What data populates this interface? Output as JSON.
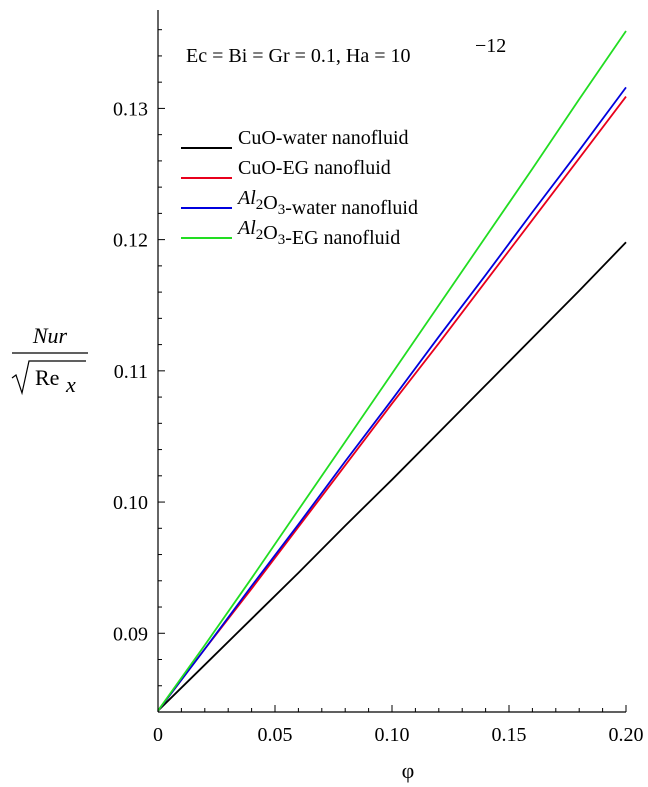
{
  "chart_data": {
    "type": "line",
    "title": "",
    "annotation": {
      "main": "Ec = Bi = Gr = 0.1, Ha = 10",
      "exponent": "−12"
    },
    "xlabel": "φ",
    "ylabel": {
      "numerator": "Nur",
      "radicand": "Re",
      "subscript": "x"
    },
    "xlim": [
      0,
      0.2
    ],
    "ylim": [
      0.084,
      0.1375
    ],
    "x_ticks": [
      {
        "value": 0,
        "label": "0"
      },
      {
        "value": 0.05,
        "label": "0.05"
      },
      {
        "value": 0.1,
        "label": "0.10"
      },
      {
        "value": 0.15,
        "label": "0.15"
      },
      {
        "value": 0.2,
        "label": "0.20"
      }
    ],
    "y_ticks": [
      {
        "value": 0.09,
        "label": "0.09"
      },
      {
        "value": 0.1,
        "label": "0.10"
      },
      {
        "value": 0.11,
        "label": "0.11"
      },
      {
        "value": 0.12,
        "label": "0.12"
      },
      {
        "value": 0.13,
        "label": "0.13"
      }
    ],
    "grid": false,
    "legend_position": "upper-left",
    "x": [
      0,
      0.02,
      0.04,
      0.06,
      0.08,
      0.1,
      0.12,
      0.14,
      0.16,
      0.18,
      0.2
    ],
    "series": [
      {
        "name": "CuO-water nanofluid",
        "legend": [
          {
            "text": "CuO-water nanofluid"
          }
        ],
        "color": "#000000",
        "values": [
          0.0841,
          0.0876,
          0.0911,
          0.0946,
          0.0982,
          0.1017,
          0.1053,
          0.1089,
          0.1125,
          0.1161,
          0.1198
        ]
      },
      {
        "name": "CuO-EG nanofluid",
        "legend": [
          {
            "text": "CuO-EG nanofluid"
          }
        ],
        "color": "#e8001c",
        "values": [
          0.0841,
          0.0888,
          0.0934,
          0.0981,
          0.1028,
          0.1075,
          0.1121,
          0.1168,
          0.1215,
          0.1262,
          0.1309
        ]
      },
      {
        "name": "Al2O3-water nanofluid",
        "legend": [
          {
            "text": "Al",
            "style": "italic"
          },
          {
            "text": "2",
            "style": "sub"
          },
          {
            "text": "O"
          },
          {
            "text": "3",
            "style": "sub"
          },
          {
            "text": "-water nanofluid"
          }
        ],
        "color": "#0000dd",
        "values": [
          0.0841,
          0.0888,
          0.0936,
          0.0983,
          0.1031,
          0.1078,
          0.1126,
          0.1173,
          0.1221,
          0.1268,
          0.1316
        ]
      },
      {
        "name": "Al2O3-EG nanofluid",
        "legend": [
          {
            "text": "Al",
            "style": "italic"
          },
          {
            "text": "2",
            "style": "sub"
          },
          {
            "text": "O"
          },
          {
            "text": "3",
            "style": "sub"
          },
          {
            "text": "-EG nanofluid"
          }
        ],
        "color": "#22dd22",
        "values": [
          0.0841,
          0.0891,
          0.0942,
          0.0994,
          0.1046,
          0.1098,
          0.115,
          0.1202,
          0.1254,
          0.1307,
          0.1359
        ]
      }
    ]
  }
}
